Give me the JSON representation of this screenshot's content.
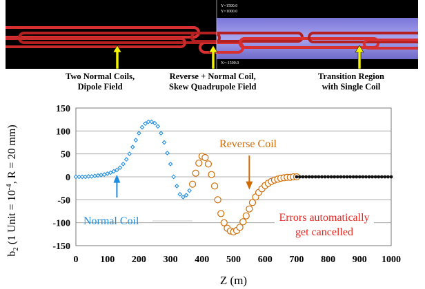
{
  "render": {
    "y_marker_top": "Y=1500.0",
    "y_marker_top2": "Y=1000.0",
    "x_marker": "X=-1500.0",
    "colors": {
      "coil": "#d83030",
      "coil_dark": "#7a1010",
      "bore": "#8c88e6",
      "background": "#000000",
      "arrow": "#f4f400"
    }
  },
  "annotations": [
    {
      "lines": [
        "Two Normal Coils,",
        "Dipole Field"
      ]
    },
    {
      "lines": [
        "Reverse + Normal Coil,",
        "Skew Quadrupole Field"
      ]
    },
    {
      "lines": [
        "Transition Region",
        "with Single Coil"
      ]
    }
  ],
  "chart_data": {
    "type": "scatter",
    "xlabel": "Z (m)",
    "ylabel": "b2 (1 Unit = 10-4, R = 20 mm)",
    "ylabel_parts": {
      "pre": "b",
      "sub": "2",
      "mid": " (1 Unit = 10",
      "sup": "-4",
      "post": ", R = 20 mm)"
    },
    "xlim": [
      0,
      1000
    ],
    "ylim": [
      -150,
      150
    ],
    "xticks": [
      0,
      100,
      200,
      300,
      400,
      500,
      600,
      700,
      800,
      900,
      1000
    ],
    "yticks": [
      -150,
      -100,
      -50,
      0,
      50,
      100,
      150
    ],
    "grid": "horizontal",
    "series": [
      {
        "name": "Normal Coil",
        "color": "#1e8de0",
        "marker": "diamond",
        "x": [
          0,
          10,
          20,
          30,
          40,
          50,
          60,
          70,
          80,
          90,
          100,
          110,
          120,
          130,
          140,
          150,
          160,
          170,
          180,
          190,
          200,
          210,
          220,
          230,
          240,
          250,
          260,
          270,
          280,
          290,
          300,
          310,
          320,
          330,
          340,
          350,
          360,
          370
        ],
        "y": [
          0,
          0,
          0,
          0,
          1,
          1,
          2,
          3,
          4,
          5,
          7,
          9,
          12,
          15,
          20,
          28,
          38,
          50,
          65,
          80,
          95,
          108,
          116,
          120,
          120,
          117,
          110,
          95,
          75,
          52,
          28,
          0,
          -20,
          -38,
          -44,
          -40,
          -30,
          -16
        ]
      },
      {
        "name": "Reverse Coil",
        "color": "#d06a00",
        "marker": "circle",
        "x": [
          370,
          380,
          390,
          400,
          410,
          420,
          430,
          440,
          450,
          460,
          470,
          480,
          490,
          500,
          510,
          520,
          530,
          540,
          550,
          560,
          570,
          580,
          590,
          600,
          610,
          620,
          630,
          640,
          650,
          660,
          670,
          680,
          690,
          700
        ],
        "y": [
          -16,
          8,
          30,
          45,
          42,
          28,
          5,
          -20,
          -50,
          -80,
          -100,
          -112,
          -118,
          -120,
          -117,
          -110,
          -98,
          -85,
          -70,
          -56,
          -44,
          -34,
          -26,
          -19,
          -14,
          -10,
          -7,
          -5,
          -3,
          -2,
          -1,
          -1,
          0,
          0
        ]
      },
      {
        "name": "",
        "color": "#111111",
        "marker": "dot",
        "x": [
          700,
          710,
          720,
          730,
          740,
          750,
          760,
          770,
          780,
          790,
          800,
          810,
          820,
          830,
          840,
          850,
          860,
          870,
          880,
          890,
          900,
          910,
          920,
          930,
          940,
          950,
          960,
          970,
          980,
          990,
          1000
        ],
        "y": [
          0,
          0,
          0,
          0,
          0,
          0,
          0,
          0,
          0,
          0,
          0,
          0,
          0,
          0,
          0,
          0,
          0,
          0,
          0,
          0,
          0,
          0,
          0,
          0,
          0,
          0,
          0,
          0,
          0,
          0,
          0
        ]
      }
    ],
    "annotations": [
      {
        "text": "Normal Coil",
        "color": "#1e8de0",
        "arrow_to": [
          130,
          5
        ]
      },
      {
        "text": "Reverse Coil",
        "color": "#d06a00",
        "arrow_to": [
          550,
          -25
        ]
      },
      {
        "lines": [
          "Errors automatically",
          "get cancelled"
        ],
        "color": "#e8231e"
      }
    ]
  }
}
